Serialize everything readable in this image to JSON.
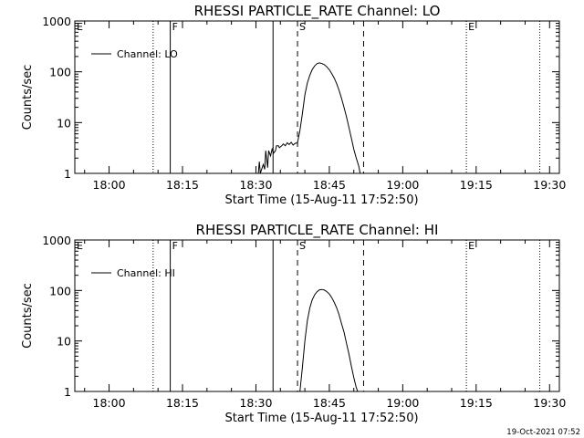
{
  "footer": "19-Oct-2021 07:52",
  "chart_data": [
    {
      "type": "line",
      "title": "RHESSI PARTICLE_RATE Channel: LO",
      "xlabel": "Start Time (15-Aug-11 17:52:50)",
      "ylabel": "Counts/sec",
      "yscale": "log",
      "ylim": [
        1,
        1000
      ],
      "xlim": [
        "17:53",
        "19:32"
      ],
      "x_ticks": [
        "18:00",
        "18:15",
        "18:30",
        "18:45",
        "19:00",
        "19:15",
        "19:30"
      ],
      "y_ticks": [
        "1",
        "10",
        "100",
        "1000"
      ],
      "legend": {
        "position": "top-left",
        "entries": [
          "Channel: LO"
        ]
      },
      "markers": [
        {
          "label": "E",
          "time": "17:53",
          "style": "dotted"
        },
        {
          "label": "",
          "time": "18:09",
          "style": "dotted"
        },
        {
          "label": "F",
          "time": "18:12.5",
          "style": "solid"
        },
        {
          "label": "",
          "time": "18:33.5",
          "style": "solid"
        },
        {
          "label": "S",
          "time": "18:38.5",
          "style": "dashed"
        },
        {
          "label": "",
          "time": "18:52",
          "style": "dashed"
        },
        {
          "label": "E",
          "time": "19:13",
          "style": "dotted"
        },
        {
          "label": "",
          "time": "19:28",
          "style": "dotted"
        }
      ],
      "series": [
        {
          "name": "Channel: LO",
          "points": [
            [
              "18:30.5",
              1
            ],
            [
              "18:30.7",
              1.7
            ],
            [
              "18:30.9",
              1
            ],
            [
              "18:31.5",
              1.5
            ],
            [
              "18:31.8",
              1.2
            ],
            [
              "18:32",
              2.8
            ],
            [
              "18:32.4",
              1.3
            ],
            [
              "18:32.6",
              2.8
            ],
            [
              "18:33",
              2.2
            ],
            [
              "18:33.3",
              3
            ],
            [
              "18:33.6",
              2.5
            ],
            [
              "18:34",
              2.8
            ],
            [
              "18:34.2",
              3.5
            ],
            [
              "18:34.6",
              3.5
            ],
            [
              "18:34.8",
              3.2
            ],
            [
              "18:35.3",
              3.5
            ],
            [
              "18:35.6",
              3.8
            ],
            [
              "18:36",
              3.5
            ],
            [
              "18:36.4",
              4
            ],
            [
              "18:36.8",
              3.7
            ],
            [
              "18:37.2",
              4.1
            ],
            [
              "18:37.6",
              3.6
            ],
            [
              "18:38",
              3.9
            ],
            [
              "18:38.5",
              4
            ],
            [
              "18:39",
              7
            ],
            [
              "18:39.5",
              15
            ],
            [
              "18:40",
              35
            ],
            [
              "18:40.5",
              60
            ],
            [
              "18:41",
              85
            ],
            [
              "18:41.5",
              110
            ],
            [
              "18:42",
              130
            ],
            [
              "18:42.5",
              145
            ],
            [
              "18:43",
              150
            ],
            [
              "18:43.5",
              145
            ],
            [
              "18:44",
              138
            ],
            [
              "18:44.5",
              125
            ],
            [
              "18:45",
              110
            ],
            [
              "18:45.5",
              92
            ],
            [
              "18:46",
              75
            ],
            [
              "18:46.5",
              58
            ],
            [
              "18:47",
              43
            ],
            [
              "18:47.5",
              30
            ],
            [
              "18:48",
              20
            ],
            [
              "18:48.5",
              13
            ],
            [
              "18:49",
              8
            ],
            [
              "18:49.5",
              5
            ],
            [
              "18:50",
              3
            ],
            [
              "18:50.5",
              2
            ],
            [
              "18:51",
              1.4
            ],
            [
              "18:51.3",
              1
            ]
          ]
        }
      ]
    },
    {
      "type": "line",
      "title": "RHESSI PARTICLE_RATE Channel: HI",
      "xlabel": "Start Time (15-Aug-11 17:52:50)",
      "ylabel": "Counts/sec",
      "yscale": "log",
      "ylim": [
        1,
        1000
      ],
      "xlim": [
        "17:53",
        "19:32"
      ],
      "x_ticks": [
        "18:00",
        "18:15",
        "18:30",
        "18:45",
        "19:00",
        "19:15",
        "19:30"
      ],
      "y_ticks": [
        "1",
        "10",
        "100",
        "1000"
      ],
      "legend": {
        "position": "top-left",
        "entries": [
          "Channel: HI"
        ]
      },
      "markers": [
        {
          "label": "E",
          "time": "17:53",
          "style": "dotted"
        },
        {
          "label": "",
          "time": "18:09",
          "style": "dotted"
        },
        {
          "label": "F",
          "time": "18:12.5",
          "style": "solid"
        },
        {
          "label": "",
          "time": "18:33.5",
          "style": "solid"
        },
        {
          "label": "S",
          "time": "18:38.5",
          "style": "dashed"
        },
        {
          "label": "",
          "time": "18:52",
          "style": "dashed"
        },
        {
          "label": "E",
          "time": "19:13",
          "style": "dotted"
        },
        {
          "label": "",
          "time": "19:28",
          "style": "dotted"
        }
      ],
      "series": [
        {
          "name": "Channel: HI",
          "points": [
            [
              "18:39",
              1
            ],
            [
              "18:39.5",
              3
            ],
            [
              "18:40",
              10
            ],
            [
              "18:40.5",
              25
            ],
            [
              "18:41",
              45
            ],
            [
              "18:41.5",
              65
            ],
            [
              "18:42",
              82
            ],
            [
              "18:42.5",
              95
            ],
            [
              "18:43",
              103
            ],
            [
              "18:43.5",
              105
            ],
            [
              "18:44",
              102
            ],
            [
              "18:44.5",
              95
            ],
            [
              "18:45",
              85
            ],
            [
              "18:45.5",
              72
            ],
            [
              "18:46",
              58
            ],
            [
              "18:46.5",
              45
            ],
            [
              "18:47",
              33
            ],
            [
              "18:47.5",
              22
            ],
            [
              "18:48",
              15
            ],
            [
              "18:48.5",
              9
            ],
            [
              "18:49",
              5.5
            ],
            [
              "18:49.5",
              3.2
            ],
            [
              "18:50",
              1.9
            ],
            [
              "18:50.5",
              1.2
            ],
            [
              "18:50.8",
              1
            ]
          ]
        }
      ]
    }
  ]
}
